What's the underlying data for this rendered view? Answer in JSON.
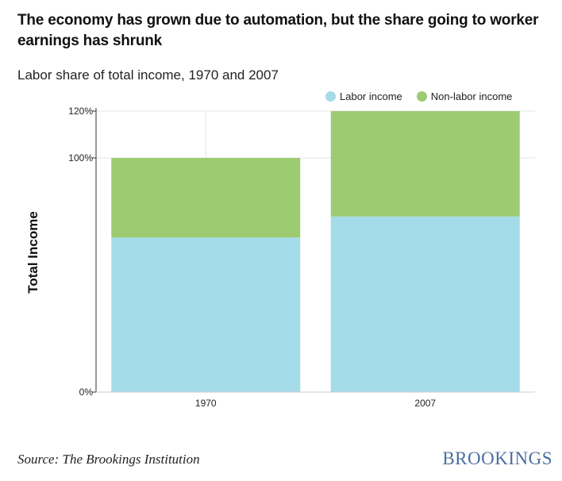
{
  "header": {
    "title": "The economy has grown due to automation, but the share going to worker earnings has shrunk",
    "subtitle": "Labor share of total income, 1970 and 2007"
  },
  "footer": {
    "source": "Source: The Brookings Institution",
    "logo_text": "BROOKINGS"
  },
  "colors": {
    "labor": "#a4dbe8",
    "non_labor": "#9ccb72",
    "grid": "#e6e6e6",
    "axis": "#333333",
    "logo": "#4a6fa0"
  },
  "chart_data": {
    "type": "bar",
    "stacked": true,
    "categories": [
      "1970",
      "2007"
    ],
    "series": [
      {
        "name": "Labor income",
        "values": [
          66,
          75
        ]
      },
      {
        "name": "Non-labor income",
        "values": [
          34,
          45
        ]
      }
    ],
    "ylabel": "Total Income",
    "ylim": [
      0,
      120
    ],
    "yticks": [
      {
        "value": 0,
        "label": "0%"
      },
      {
        "value": 100,
        "label": "100%"
      },
      {
        "value": 120,
        "label": "120%"
      }
    ],
    "legend_position": "top-right",
    "grid": true
  }
}
